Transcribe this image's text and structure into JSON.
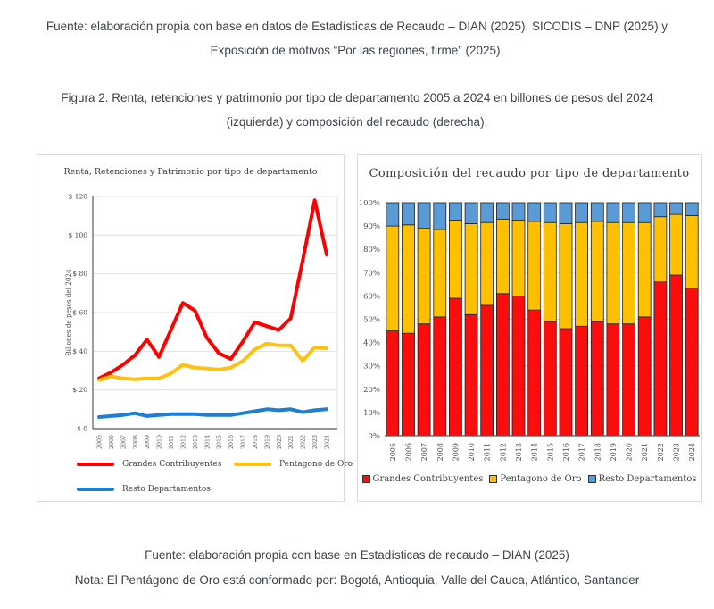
{
  "document": {
    "top_source": "Fuente: elaboración propia con base en datos de Estadísticas de Recaudo – DIAN (2025), SICODIS – DNP (2025) y Exposición de motivos “Por las regiones, firme” (2025).",
    "figure_caption": "Figura 2. Renta, retenciones y patrimonio por tipo de departamento 2005 a 2024 en billones de pesos del 2024 (izquierda) y composición del recaudo (derecha).",
    "bottom_source": "Fuente: elaboración propia con base en Estadísticas de recaudo – DIAN (2025)",
    "bottom_note": "Nota: El Pentágono de Oro está conformado por: Bogotá, Antioquia, Valle del Cauca, Atlántico, Santander"
  },
  "colors": {
    "line_red": "#fe0000",
    "line_yellow": "#ffc110",
    "line_blue": "#1d7fd4",
    "bar_red": "#fb0d0d",
    "bar_yellow": "#ffc000",
    "bar_blue": "#5b9bd5",
    "axis": "#595959",
    "grid": "#e0e0e0",
    "text": "#3d434b"
  },
  "chart_data": [
    {
      "type": "line",
      "title": "Renta, Retenciones y Patrimonio por tipo de departamento",
      "ylabel": "Billones de pesos del 2024",
      "ylim": [
        0,
        120
      ],
      "ytick_step": 20,
      "yticks": [
        "$ 0",
        "$ 20",
        "$ 40",
        "$ 60",
        "$ 80",
        "$ 100",
        "$ 120"
      ],
      "grid": "horizontal",
      "legend_position": "bottom",
      "x": [
        "2005",
        "2006",
        "2007",
        "2008",
        "2009",
        "2010",
        "2011",
        "2012",
        "2013",
        "2014",
        "2015",
        "2016",
        "2017",
        "2018",
        "2019",
        "2020",
        "2021",
        "2022",
        "2023",
        "2024"
      ],
      "series": [
        {
          "name": "Grandes Contribuyentes",
          "color": "#fe0000",
          "values": [
            26,
            29,
            33,
            38,
            46,
            37,
            51,
            65,
            61,
            47,
            39,
            36,
            45,
            55,
            53,
            51,
            57,
            87,
            118,
            90
          ]
        },
        {
          "name": "Pentagono de Oro",
          "color": "#ffc110",
          "values": [
            25,
            27,
            26,
            25.5,
            26,
            26,
            28.5,
            33,
            31.5,
            31,
            30.5,
            31.5,
            35,
            41,
            44,
            43,
            43,
            35,
            42,
            41.5
          ]
        },
        {
          "name": "Resto Departamentos",
          "color": "#1d7fd4",
          "values": [
            6,
            6.5,
            7,
            8,
            6.5,
            7,
            7.5,
            7.5,
            7.5,
            7,
            7,
            7,
            8,
            9,
            10,
            9.5,
            10,
            8.5,
            9.5,
            10
          ]
        }
      ]
    },
    {
      "type": "bar",
      "stacked": true,
      "title": "Composición del recaudo por tipo de departamento",
      "ylim": [
        0,
        100
      ],
      "ytick_step": 10,
      "yticks": [
        "0%",
        "10%",
        "20%",
        "30%",
        "40%",
        "50%",
        "60%",
        "70%",
        "80%",
        "90%",
        "100%"
      ],
      "grid": "horizontal",
      "legend_position": "bottom",
      "categories": [
        "2005",
        "2006",
        "2007",
        "2008",
        "2009",
        "2010",
        "2011",
        "2012",
        "2013",
        "2014",
        "2015",
        "2016",
        "2017",
        "2018",
        "2019",
        "2020",
        "2021",
        "2022",
        "2023",
        "2024"
      ],
      "series": [
        {
          "name": "Grandes Contribuyentes",
          "color": "#fb0d0d",
          "values": [
            45,
            44,
            48,
            51,
            59,
            52,
            56,
            61,
            60,
            54,
            49,
            46,
            47,
            49,
            48,
            48,
            51,
            66,
            69,
            63
          ]
        },
        {
          "name": "Pentagono de Oro",
          "color": "#ffc000",
          "values": [
            45,
            46.5,
            41,
            37.5,
            33.5,
            39,
            35.5,
            32,
            32.5,
            38,
            42.5,
            45,
            44.5,
            43,
            43.5,
            43.5,
            40.5,
            28,
            26,
            31.5
          ]
        },
        {
          "name": "Resto Departamentos",
          "color": "#5b9bd5",
          "values": [
            10,
            9.5,
            11,
            11.5,
            7.5,
            9,
            8.5,
            7,
            7.5,
            8,
            8.5,
            9,
            8.5,
            8,
            8.5,
            8.5,
            8.5,
            6,
            5,
            5.5
          ]
        }
      ]
    }
  ]
}
